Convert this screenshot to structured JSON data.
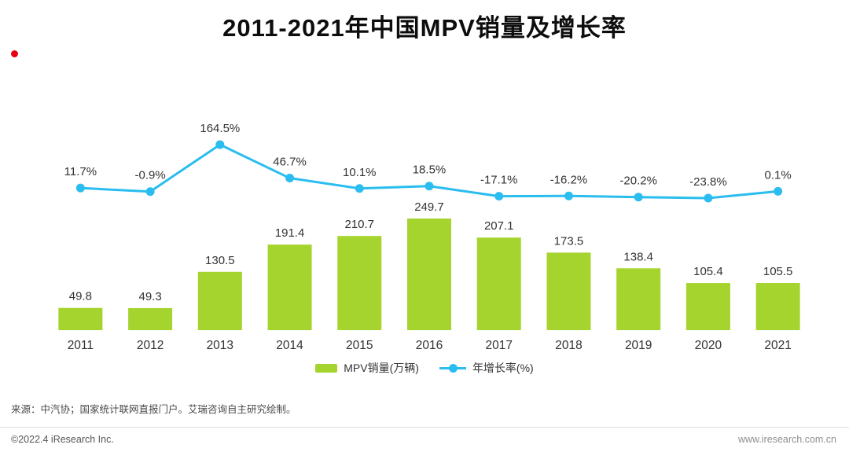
{
  "header": {
    "title": "2011-2021年中国MPV销量及增长率",
    "brand_dot_color": "#e60012"
  },
  "chart_data": {
    "type": "bar+line",
    "title": "2011-2021年中国MPV销量及增长率",
    "categories": [
      "2011",
      "2012",
      "2013",
      "2014",
      "2015",
      "2016",
      "2017",
      "2018",
      "2019",
      "2020",
      "2021"
    ],
    "series": [
      {
        "name": "MPV销量(万辆)",
        "type": "bar",
        "color": "#a6d42f",
        "values": [
          49.8,
          49.3,
          130.5,
          191.4,
          210.7,
          249.7,
          207.1,
          173.5,
          138.4,
          105.4,
          105.5
        ]
      },
      {
        "name": "年增长率(%)",
        "type": "line",
        "color": "#2bbdef",
        "label_suffix": "%",
        "values": [
          11.7,
          -0.9,
          164.5,
          46.7,
          10.1,
          18.5,
          -17.1,
          -16.2,
          -20.2,
          -23.8,
          0.1
        ]
      }
    ],
    "grid": false,
    "legend_position": "bottom",
    "value_labels": true,
    "label_color": "#333333"
  },
  "footer": {
    "source": "来源：中汽协；国家统计联网直报门户。艾瑞咨询自主研究绘制。",
    "copyright": "©2022.4 iResearch Inc.",
    "website": "www.iresearch.com.cn"
  }
}
